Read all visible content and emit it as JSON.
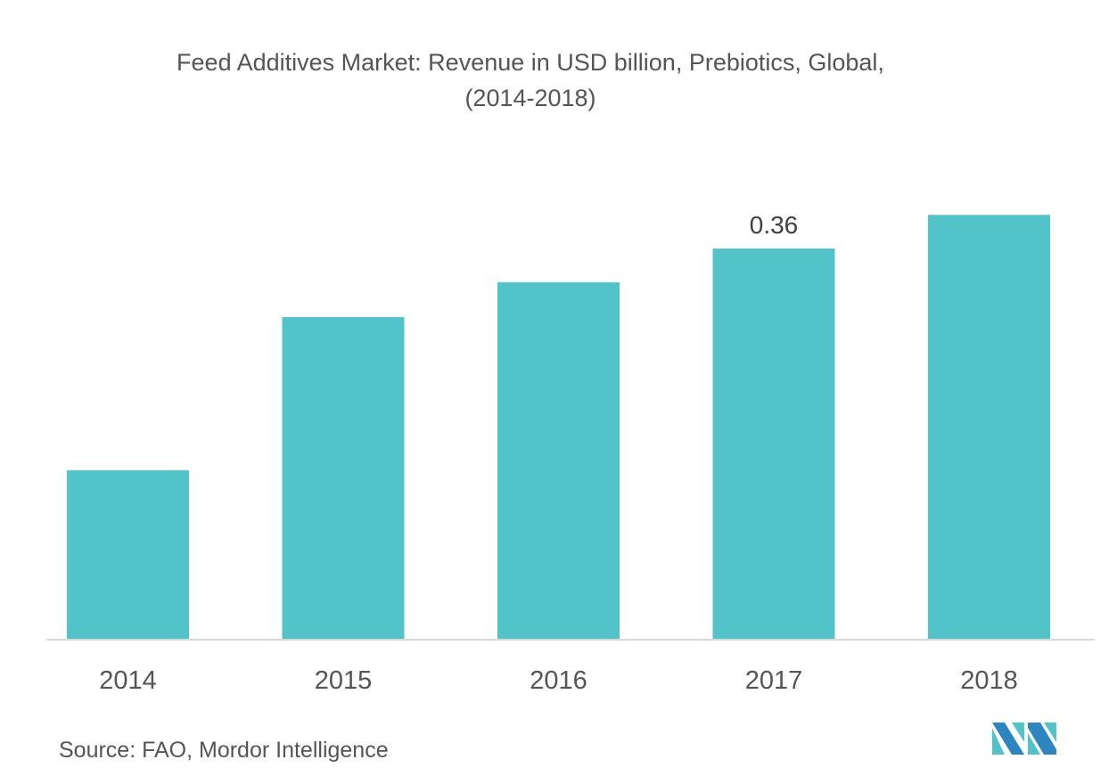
{
  "chart_data": {
    "type": "bar",
    "title": "Feed Additives Market: Revenue in USD billion, Prebiotics, Global,",
    "subtitle": "(2014-2018)",
    "categories": [
      "2014",
      "2015",
      "2016",
      "2017",
      "2018"
    ],
    "values": [
      0.156,
      0.297,
      0.329,
      0.36,
      0.391
    ],
    "data_labels": [
      null,
      null,
      null,
      "0.36",
      null
    ],
    "xlabel": "",
    "ylabel": "",
    "ylim": [
      0,
      0.4
    ],
    "grid": false,
    "legend": "none",
    "bar_color": "#52C3C9",
    "axis_color": "#D9D9D9"
  },
  "footer": {
    "source": "Source: FAO, Mordor Intelligence",
    "logo": "mordor-intelligence-logo"
  }
}
